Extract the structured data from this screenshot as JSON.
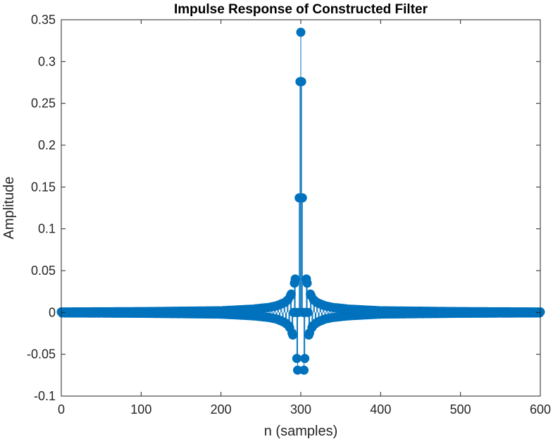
{
  "chart_data": {
    "type": "stem",
    "title": "Impulse Response of Constructed Filter",
    "xlabel": "n (samples)",
    "ylabel": "Amplitude",
    "xlim": [
      0,
      600
    ],
    "ylim": [
      -0.1,
      0.35
    ],
    "xticks": [
      0,
      100,
      200,
      300,
      400,
      500,
      600
    ],
    "xtick_labels": [
      "0",
      "100",
      "200",
      "300",
      "400",
      "500",
      "600"
    ],
    "yticks": [
      -0.1,
      -0.05,
      0,
      0.05,
      0.1,
      0.15,
      0.2,
      0.25,
      0.3,
      0.35
    ],
    "ytick_labels": [
      "-0.1",
      "-0.05",
      "0",
      "0.05",
      "0.1",
      "0.15",
      "0.2",
      "0.25",
      "0.3",
      "0.35"
    ],
    "grid": false,
    "box": true,
    "series": [
      {
        "color": "#0072BD",
        "n_start": 0,
        "n_end": 600,
        "center": 300,
        "x": [
          299,
          300,
          301,
          302,
          303,
          304,
          305,
          306,
          307,
          308,
          309,
          310,
          312,
          315,
          320,
          330,
          340,
          360,
          380,
          400,
          450,
          500,
          550,
          600
        ],
        "y": [
          0.276,
          0.335,
          0.276,
          0.137,
          0.0,
          -0.069,
          -0.055,
          0.0,
          0.04,
          0.035,
          0.0,
          -0.027,
          0.022,
          -0.016,
          0.012,
          -0.008,
          0.006,
          -0.004,
          0.003,
          -0.002,
          0.0015,
          0.001,
          0.0008,
          0.0006
        ]
      }
    ]
  }
}
